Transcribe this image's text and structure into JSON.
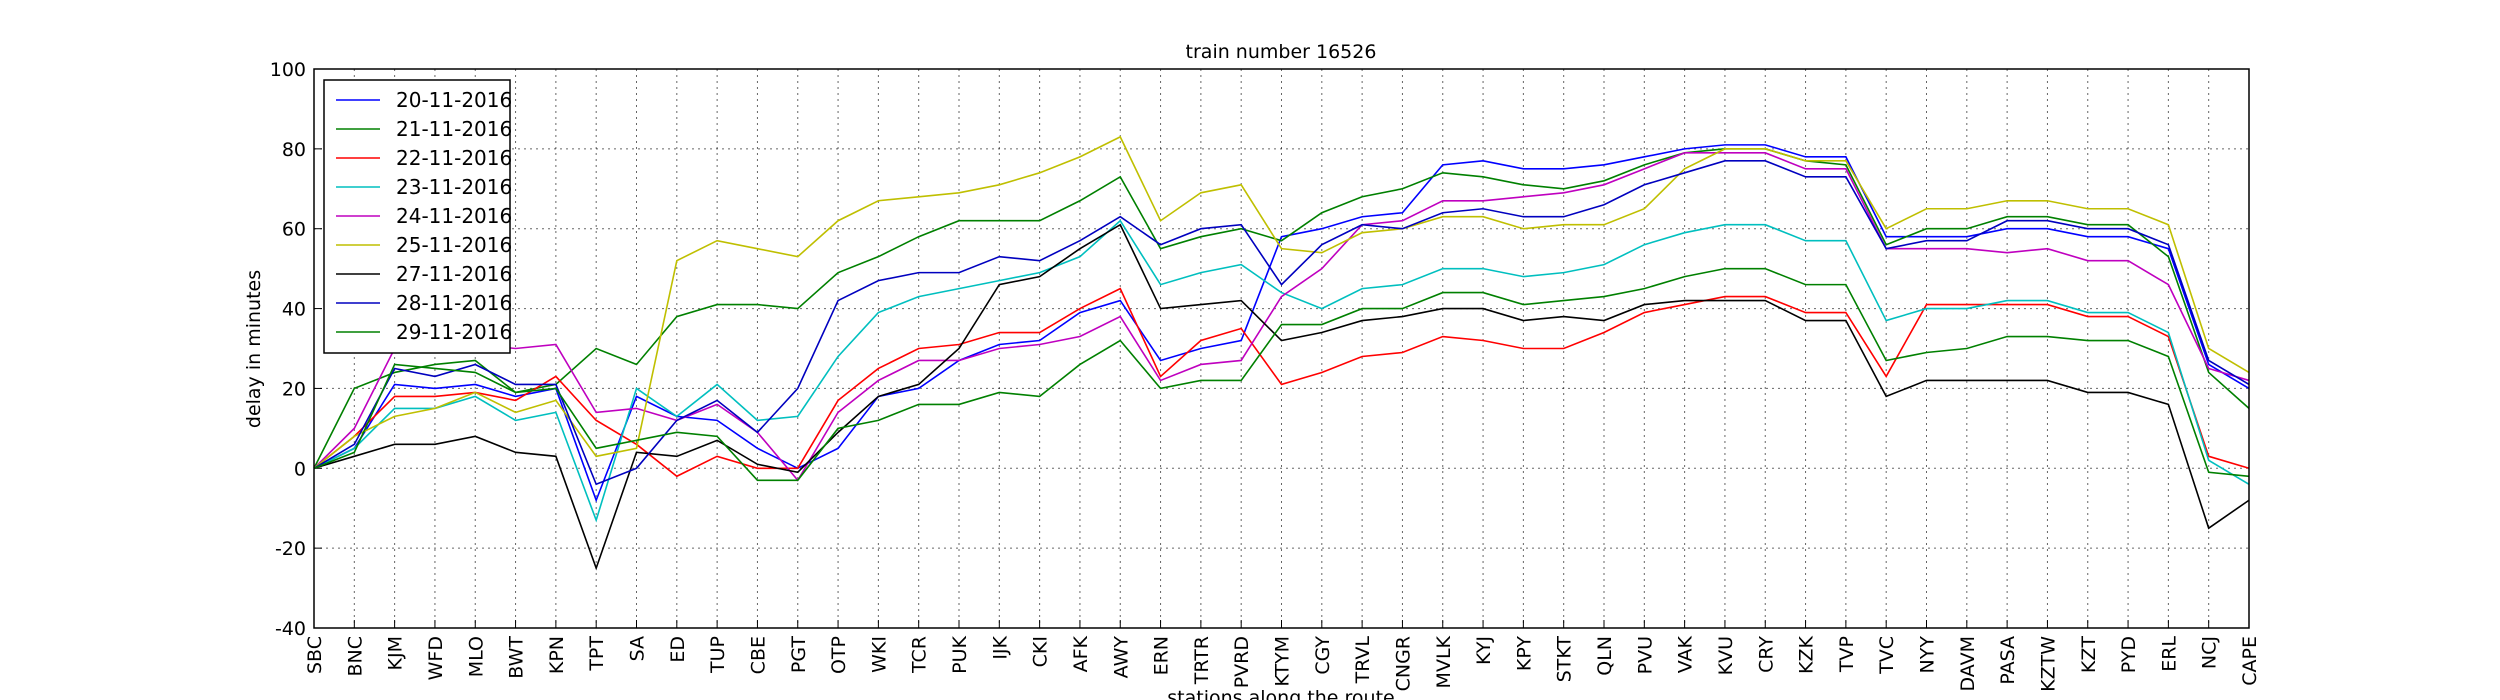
{
  "chart_data": {
    "type": "line",
    "title": "train number 16526",
    "x_label": "stations along the route",
    "y_label": "delay in minutes",
    "categories": [
      "SBC",
      "BNC",
      "KJM",
      "WFD",
      "MLO",
      "BWT",
      "KPN",
      "TPT",
      "SA",
      "ED",
      "TUP",
      "CBE",
      "PGT",
      "OTP",
      "WKI",
      "TCR",
      "PUK",
      "IJK",
      "CKI",
      "AFK",
      "AWY",
      "ERN",
      "TRTR",
      "PVRD",
      "KTYM",
      "CGY",
      "TRVL",
      "CNGR",
      "MVLK",
      "KYJ",
      "KPY",
      "STKT",
      "QLN",
      "PVU",
      "VAK",
      "KVU",
      "CRY",
      "KZK",
      "TVP",
      "TVC",
      "NYY",
      "DAVM",
      "PASA",
      "KZTW",
      "KZT",
      "PYD",
      "ERL",
      "NCJ",
      "CAPE"
    ],
    "ylim": [
      -40,
      100
    ],
    "yticks": [
      -40,
      -20,
      0,
      20,
      40,
      60,
      80,
      100
    ],
    "grid": true,
    "legend": "upper left",
    "series": [
      {
        "name": "20-11-2016",
        "color": "#0000ff",
        "values": [
          0,
          5,
          21,
          20,
          21,
          18,
          20,
          -8,
          18,
          13,
          12,
          5,
          0,
          5,
          18,
          20,
          27,
          31,
          32,
          39,
          42,
          27,
          30,
          32,
          58,
          60,
          63,
          64,
          76,
          77,
          75,
          75,
          76,
          78,
          80,
          81,
          81,
          78,
          78,
          58,
          58,
          58,
          60,
          60,
          58,
          58,
          55,
          26,
          20
        ]
      },
      {
        "name": "21-11-2016",
        "color": "#008000",
        "values": [
          0,
          20,
          24,
          26,
          27,
          19,
          21,
          30,
          26,
          38,
          41,
          41,
          40,
          49,
          53,
          58,
          62,
          62,
          62,
          67,
          73,
          55,
          58,
          60,
          57,
          64,
          68,
          70,
          74,
          73,
          71,
          70,
          72,
          76,
          79,
          80,
          80,
          77,
          76,
          56,
          60,
          60,
          63,
          63,
          61,
          61,
          53,
          24,
          15
        ]
      },
      {
        "name": "22-11-2016",
        "color": "#ff0000",
        "values": [
          0,
          8,
          18,
          18,
          19,
          17,
          23,
          12,
          6,
          -2,
          3,
          0,
          0,
          17,
          25,
          30,
          31,
          34,
          34,
          40,
          45,
          23,
          32,
          35,
          21,
          24,
          28,
          29,
          33,
          32,
          30,
          30,
          34,
          39,
          41,
          43,
          43,
          39,
          39,
          23,
          41,
          41,
          41,
          41,
          38,
          38,
          33,
          3,
          0
        ]
      },
      {
        "name": "23-11-2016",
        "color": "#00bfbf",
        "values": [
          0,
          5,
          15,
          15,
          18,
          12,
          14,
          -13,
          20,
          13,
          21,
          12,
          13,
          28,
          39,
          43,
          45,
          47,
          49,
          53,
          62,
          46,
          49,
          51,
          44,
          40,
          45,
          46,
          50,
          50,
          48,
          49,
          51,
          56,
          59,
          61,
          61,
          57,
          57,
          37,
          40,
          40,
          42,
          42,
          39,
          39,
          34,
          2,
          -4
        ]
      },
      {
        "name": "24-11-2016",
        "color": "#bf00bf",
        "values": [
          0,
          10,
          30,
          31,
          31,
          30,
          31,
          14,
          15,
          12,
          16,
          9,
          -3,
          14,
          22,
          27,
          27,
          30,
          31,
          33,
          38,
          22,
          26,
          27,
          43,
          50,
          61,
          62,
          67,
          67,
          68,
          69,
          71,
          75,
          79,
          79,
          79,
          75,
          75,
          55,
          55,
          55,
          54,
          55,
          52,
          52,
          46,
          25,
          22
        ]
      },
      {
        "name": "25-11-2016",
        "color": "#bfbf00",
        "values": [
          0,
          8,
          13,
          15,
          19,
          14,
          17,
          3,
          5,
          52,
          57,
          55,
          53,
          62,
          67,
          68,
          69,
          71,
          74,
          78,
          83,
          62,
          69,
          71,
          55,
          54,
          59,
          60,
          63,
          63,
          60,
          61,
          61,
          65,
          75,
          80,
          80,
          77,
          77,
          60,
          65,
          65,
          67,
          67,
          65,
          65,
          61,
          30,
          24
        ]
      },
      {
        "name": "27-11-2016",
        "color": "#000000",
        "values": [
          0,
          3,
          6,
          6,
          8,
          4,
          3,
          -25,
          4,
          3,
          7,
          1,
          -1,
          9,
          18,
          21,
          30,
          46,
          48,
          55,
          61,
          40,
          41,
          42,
          32,
          34,
          37,
          38,
          40,
          40,
          37,
          38,
          37,
          41,
          42,
          42,
          42,
          37,
          37,
          18,
          22,
          22,
          22,
          22,
          19,
          19,
          16,
          -15,
          -8
        ]
      },
      {
        "name": "28-11-2016",
        "color": "#0000bf",
        "values": [
          0,
          6,
          25,
          23,
          26,
          21,
          21,
          -4,
          0,
          12,
          17,
          9,
          20,
          42,
          47,
          49,
          49,
          53,
          52,
          57,
          63,
          56,
          60,
          61,
          46,
          56,
          61,
          60,
          64,
          65,
          63,
          63,
          66,
          71,
          74,
          77,
          77,
          73,
          73,
          55,
          57,
          57,
          62,
          62,
          60,
          60,
          56,
          27,
          21
        ]
      },
      {
        "name": "29-11-2016",
        "color": "#008000",
        "values": [
          0,
          4,
          26,
          25,
          24,
          19,
          20,
          5,
          7,
          9,
          8,
          -3,
          -3,
          10,
          12,
          16,
          16,
          19,
          18,
          26,
          32,
          20,
          22,
          22,
          36,
          36,
          40,
          40,
          44,
          44,
          41,
          42,
          43,
          45,
          48,
          50,
          50,
          46,
          46,
          27,
          29,
          30,
          33,
          33,
          32,
          32,
          28,
          -1,
          -2
        ]
      }
    ]
  }
}
